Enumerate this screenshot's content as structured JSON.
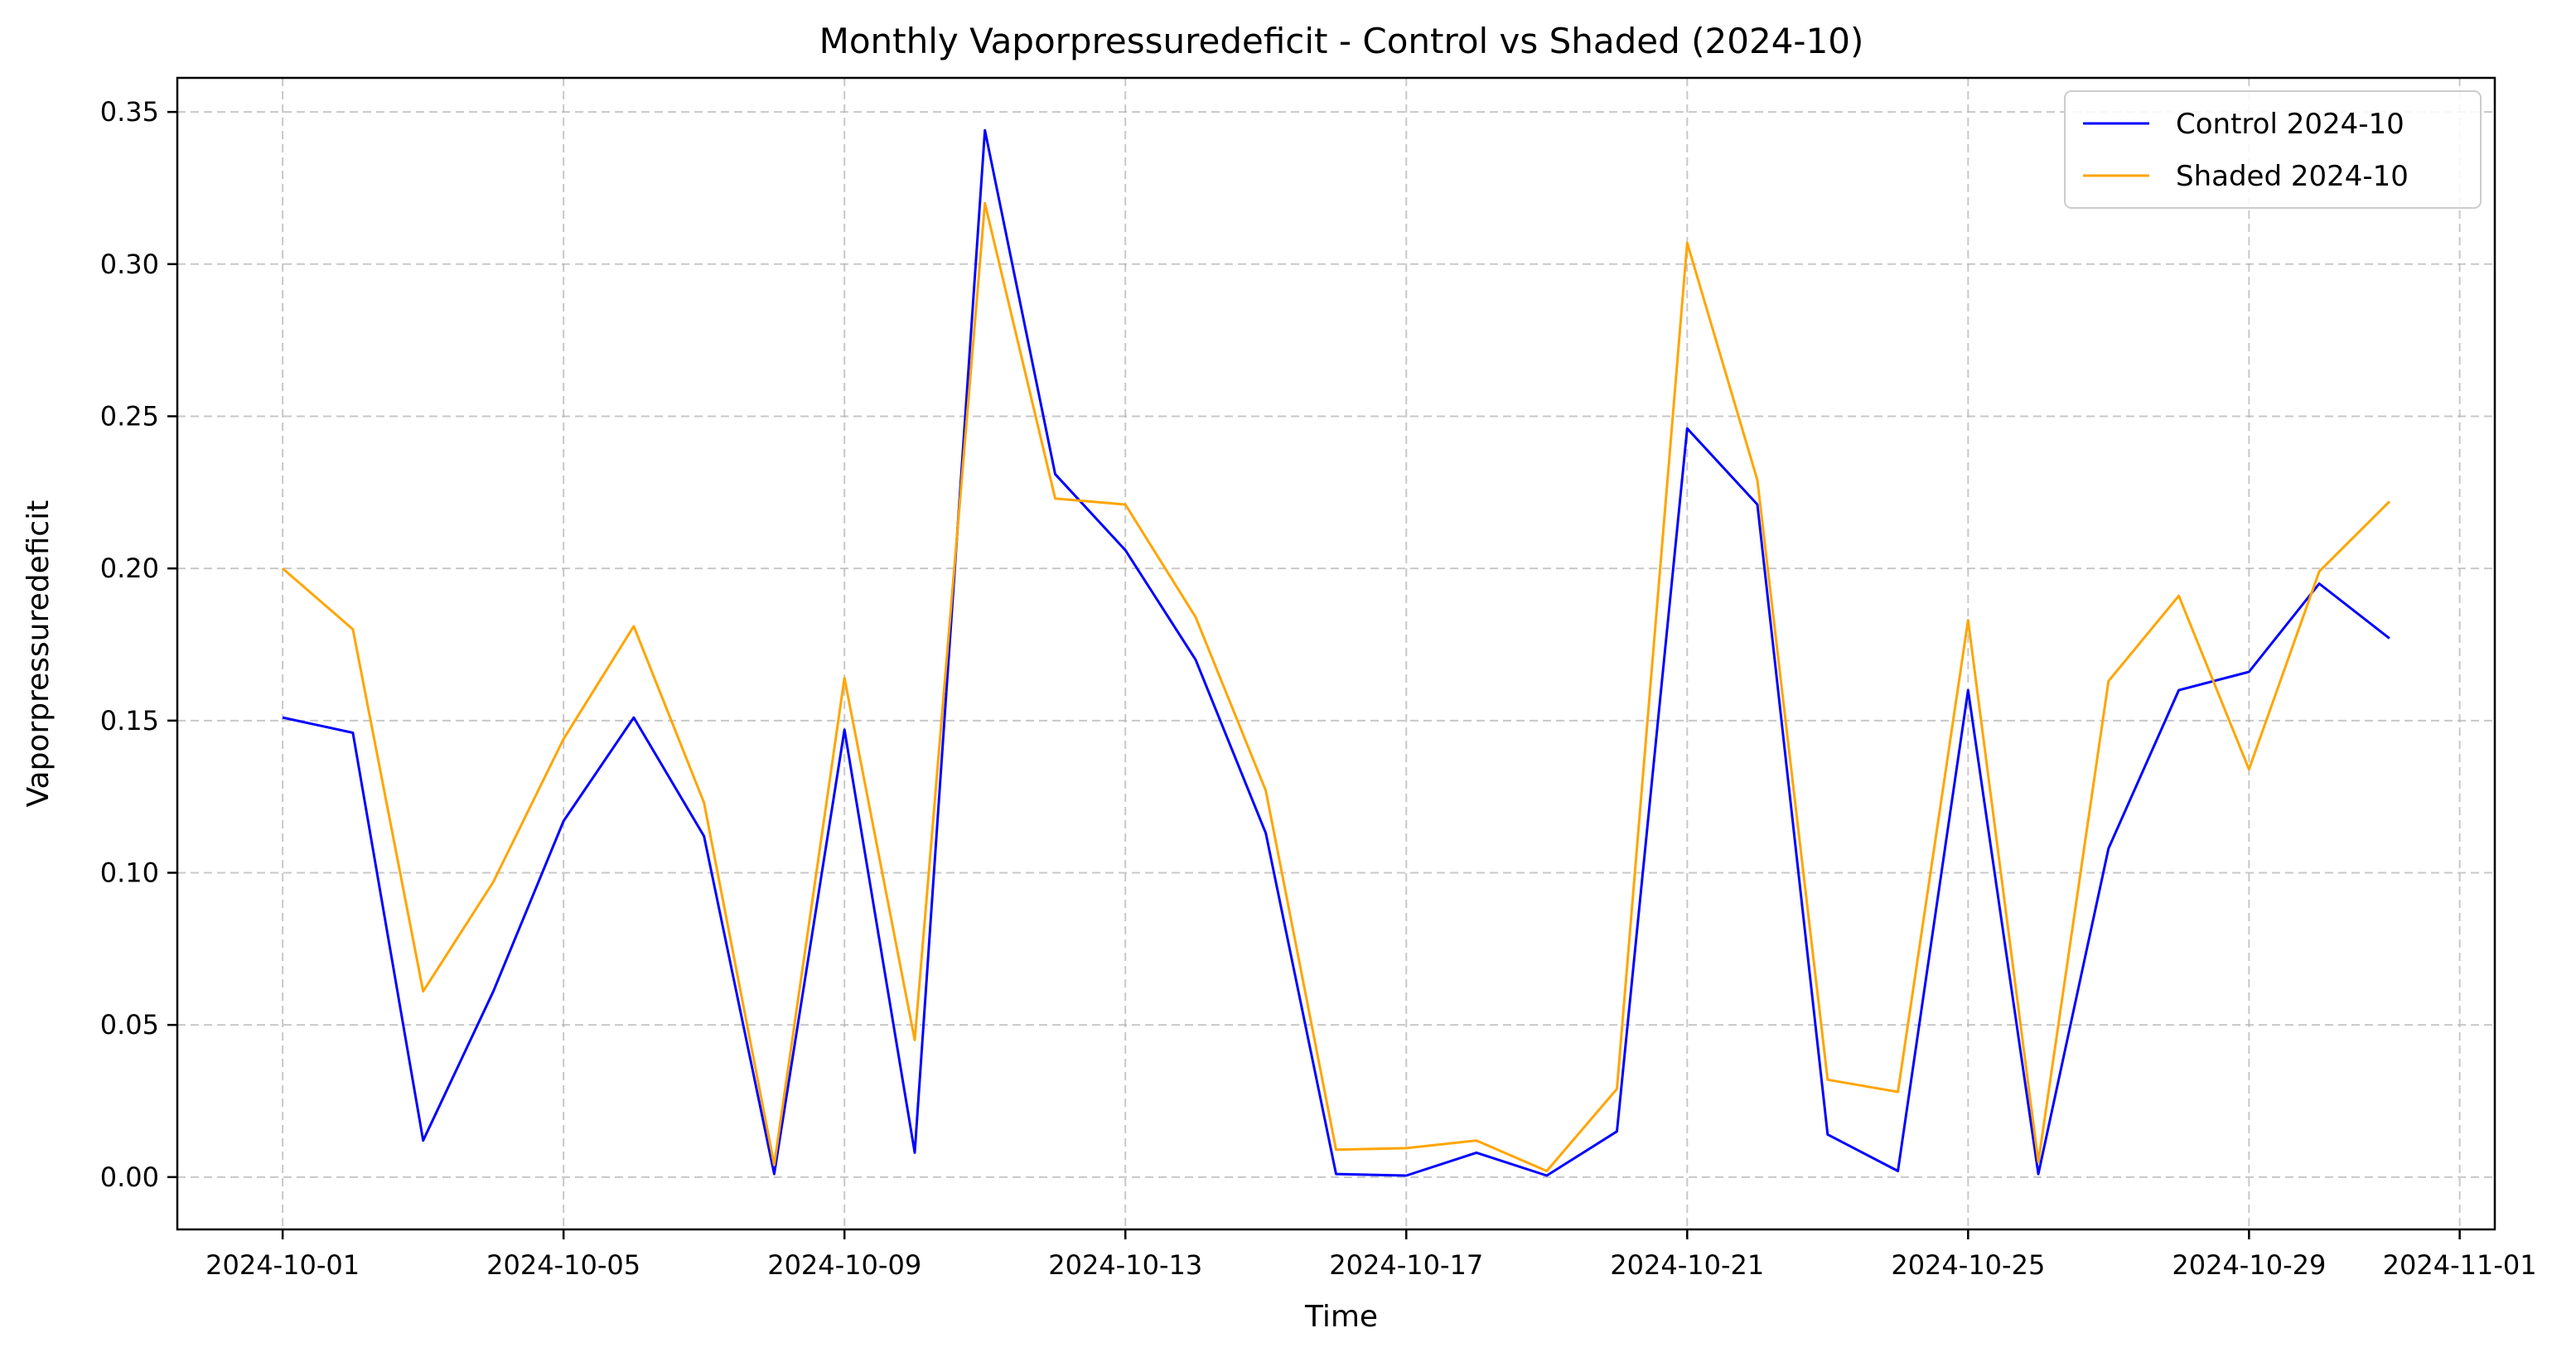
{
  "chart_data": {
    "type": "line",
    "title": "Monthly Vaporpressuredeficit - Control vs Shaded (2024-10)",
    "xlabel": "Time",
    "ylabel": "Vaporpressuredeficit",
    "x": [
      "2024-10-01",
      "2024-10-02",
      "2024-10-03",
      "2024-10-04",
      "2024-10-05",
      "2024-10-06",
      "2024-10-07",
      "2024-10-08",
      "2024-10-09",
      "2024-10-10",
      "2024-10-11",
      "2024-10-12",
      "2024-10-13",
      "2024-10-14",
      "2024-10-15",
      "2024-10-16",
      "2024-10-17",
      "2024-10-18",
      "2024-10-19",
      "2024-10-20",
      "2024-10-21",
      "2024-10-22",
      "2024-10-23",
      "2024-10-24",
      "2024-10-25",
      "2024-10-26",
      "2024-10-27",
      "2024-10-28",
      "2024-10-29",
      "2024-10-30",
      "2024-10-31"
    ],
    "series": [
      {
        "name": "Control 2024-10",
        "color": "#0000ff",
        "values": [
          0.151,
          0.146,
          0.012,
          0.061,
          0.117,
          0.151,
          0.112,
          0.001,
          0.147,
          0.008,
          0.344,
          0.231,
          0.206,
          0.17,
          0.113,
          0.001,
          0.0005,
          0.008,
          0.0005,
          0.015,
          0.246,
          0.221,
          0.014,
          0.002,
          0.16,
          0.001,
          0.108,
          0.16,
          0.166,
          0.195,
          0.177
        ]
      },
      {
        "name": "Shaded 2024-10",
        "color": "#ffa500",
        "values": [
          0.2,
          0.18,
          0.061,
          0.097,
          0.144,
          0.181,
          0.123,
          0.004,
          0.164,
          0.045,
          0.32,
          0.223,
          0.221,
          0.184,
          0.127,
          0.009,
          0.0095,
          0.012,
          0.002,
          0.029,
          0.307,
          0.229,
          0.032,
          0.028,
          0.183,
          0.005,
          0.163,
          0.191,
          0.134,
          0.199,
          0.222
        ]
      }
    ],
    "x_ticks": [
      "2024-10-01",
      "2024-10-05",
      "2024-10-09",
      "2024-10-13",
      "2024-10-17",
      "2024-10-21",
      "2024-10-25",
      "2024-10-29",
      "2024-11-01"
    ],
    "y_ticks": [
      "0.00",
      "0.05",
      "0.10",
      "0.15",
      "0.20",
      "0.25",
      "0.30",
      "0.35"
    ],
    "xlim": [
      "2024-09-29.5",
      "2024-11-01.5"
    ],
    "ylim": [
      -0.0172,
      0.3612
    ],
    "grid": true,
    "legend_position": "top-right"
  }
}
